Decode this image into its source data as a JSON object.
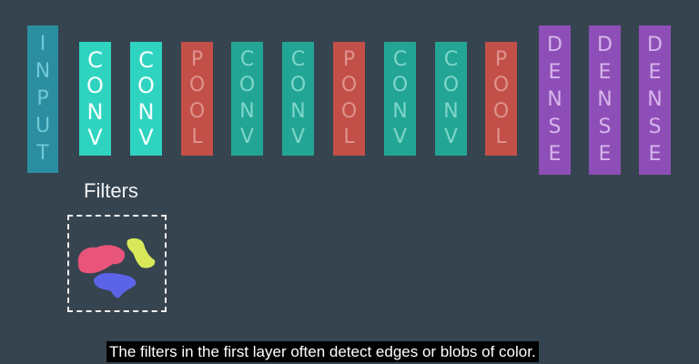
{
  "layers": [
    {
      "id": "input",
      "label": "INPUT",
      "color": "#2b8ea0",
      "text_color": "#6fc8d6"
    },
    {
      "id": "conv1",
      "label": "CONV",
      "color": "#2fd4c0",
      "text_color": "#f4fffd"
    },
    {
      "id": "conv2",
      "label": "CONV",
      "color": "#2fd4c0",
      "text_color": "#f4fffd"
    },
    {
      "id": "pool1",
      "label": "POOL",
      "color": "#c25049",
      "text_color": "#e0928c"
    },
    {
      "id": "conv3",
      "label": "CONV",
      "color": "#22a595",
      "text_color": "#7ed6ca"
    },
    {
      "id": "conv4",
      "label": "CONV",
      "color": "#22a595",
      "text_color": "#7ed6ca"
    },
    {
      "id": "pool2",
      "label": "POOL",
      "color": "#c25049",
      "text_color": "#e0928c"
    },
    {
      "id": "conv5",
      "label": "CONV",
      "color": "#22a595",
      "text_color": "#7ed6ca"
    },
    {
      "id": "conv6",
      "label": "CONV",
      "color": "#22a595",
      "text_color": "#7ed6ca"
    },
    {
      "id": "pool3",
      "label": "POOL",
      "color": "#c25049",
      "text_color": "#e0928c"
    },
    {
      "id": "dense1",
      "label": "DENSE",
      "color": "#8e4eb7",
      "text_color": "#d6b5ec"
    },
    {
      "id": "dense2",
      "label": "DENSE",
      "color": "#8e4eb7",
      "text_color": "#d6b5ec"
    },
    {
      "id": "dense3",
      "label": "DENSE",
      "color": "#8e4eb7",
      "text_color": "#d6b5ec"
    }
  ],
  "filters": {
    "label": "Filters",
    "blob_colors": {
      "pink": "#e8547a",
      "yellow": "#d8e85a",
      "blue": "#5b64e6"
    }
  },
  "subtitle": "The filters in the first layer often detect edges or blobs of color."
}
